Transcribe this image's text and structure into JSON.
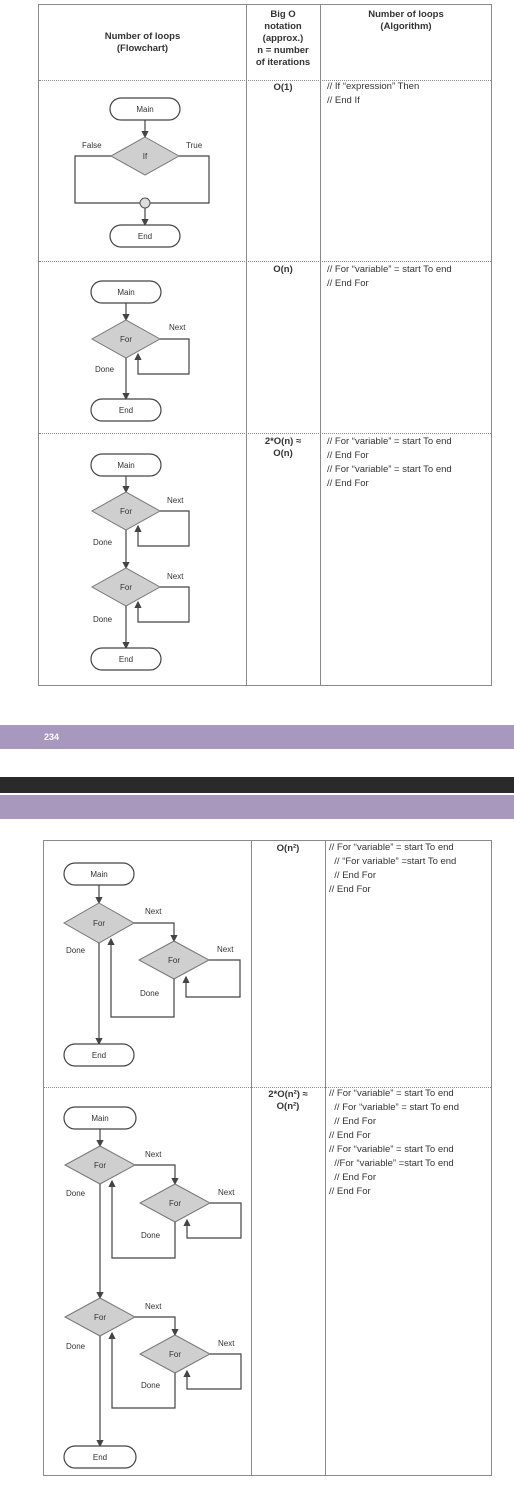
{
  "table": {
    "headers": {
      "flowchart": "Number of loops\n(Flowchart)",
      "big_o": "Big O\nnotation\n(approx.)\nn = number\nof iterations",
      "algorithm": "Number of loops\n(Algorithm)"
    },
    "rows": [
      {
        "big_o": "O(1)",
        "algorithm": "// If “expression” Then\n// End If"
      },
      {
        "big_o": "O(n)",
        "algorithm": "// For “variable” = start To end\n// End For"
      },
      {
        "big_o": "2*O(n) ≈\nO(n)",
        "algorithm": "// For “variable” = start To end\n// End For\n// For “variable” = start To end\n// End For"
      },
      {
        "big_o": "O(n²)",
        "algorithm": "// For “variable” = start To end\n  // “For variable” =start To end\n  // End For\n// End For"
      },
      {
        "big_o": "2*O(n²) ≈\nO(n²)",
        "algorithm": "// For “variable” = start To end\n  // For “variable” = start To end\n  // End For\n// End For\n// For “variable” = start To end\n  //For “variable” =start To end\n  // End For\n// End For"
      }
    ]
  },
  "flow_labels": {
    "main": "Main",
    "end": "End",
    "if": "If",
    "for": "For",
    "true": "True",
    "false": "False",
    "next": "Next",
    "done": "Done"
  },
  "footer": {
    "page_number": "234"
  },
  "colors": {
    "band": "#a898bd",
    "dark_band": "#2a2a2a",
    "diamond": "#cfcfcf"
  }
}
